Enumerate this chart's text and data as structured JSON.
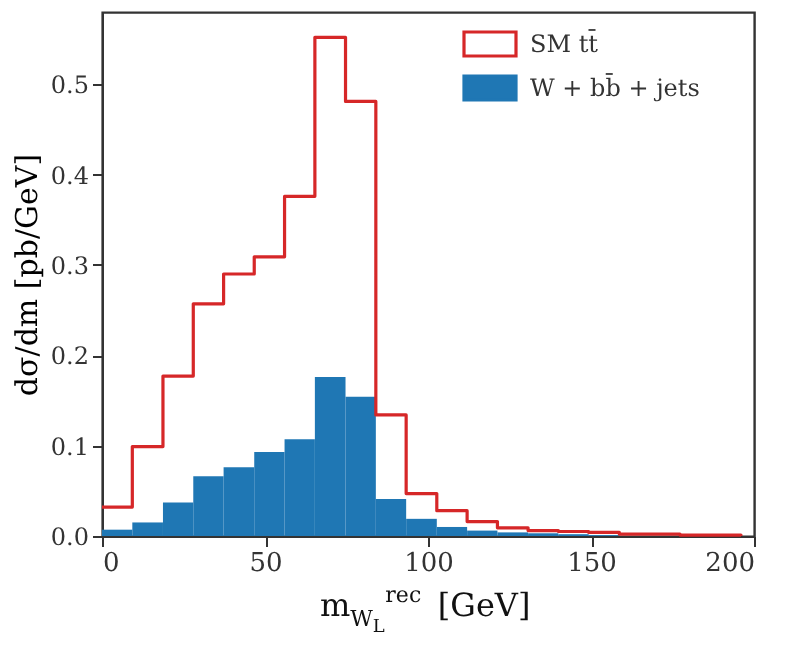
{
  "chart_data": {
    "type": "histogram",
    "bins": [
      0,
      9.3,
      18.7,
      28,
      37.3,
      46.7,
      56,
      65.3,
      74.7,
      84,
      93.3,
      102.7,
      112,
      121.3,
      130.7,
      140,
      149.3,
      158.7,
      168,
      177.3,
      186.7,
      196
    ],
    "series": [
      {
        "name": "SM tt̄",
        "type": "step",
        "color": "#d62728",
        "x": [
          0,
          9.3,
          18.7,
          28,
          37.3,
          46.7,
          56,
          65.3,
          74.7,
          84,
          93.3,
          102.7,
          112,
          121.3,
          130.7,
          140,
          149.3,
          158.7,
          168,
          177.3,
          186.7,
          196
        ],
        "values": [
          0.032,
          0.099,
          0.177,
          0.257,
          0.29,
          0.309,
          0.376,
          0.552,
          0.481,
          0.134,
          0.047,
          0.028,
          0.016,
          0.009,
          0.006,
          0.005,
          0.004,
          0.002,
          0.002,
          0.001,
          0.001,
          0
        ]
      },
      {
        "name": "W + bb̄ + jets",
        "color": "#1f77b4",
        "values": [
          0.007,
          0.015,
          0.037,
          0.066,
          0.076,
          0.093,
          0.107,
          0.176,
          0.154,
          0.041,
          0.019,
          0.01,
          0.006,
          0.004,
          0.003,
          0.002,
          0.001,
          0,
          0,
          0,
          0
        ]
      }
    ],
    "xlabel": "m$_{W}$$_{L}$$^{rec}$ [GeV]",
    "ylabel": "dσ/dm [pb/GeV]",
    "xlim": [
      0,
      200
    ],
    "xticks": [
      0,
      50,
      100,
      150,
      200
    ],
    "ylim": [
      0,
      0.58
    ],
    "yticks": [
      {
        "value": 0,
        "label": "0.0"
      },
      0.1,
      0.2,
      0.3,
      0.4,
      0.5
    ],
    "grid": false,
    "legend": "top right"
  }
}
